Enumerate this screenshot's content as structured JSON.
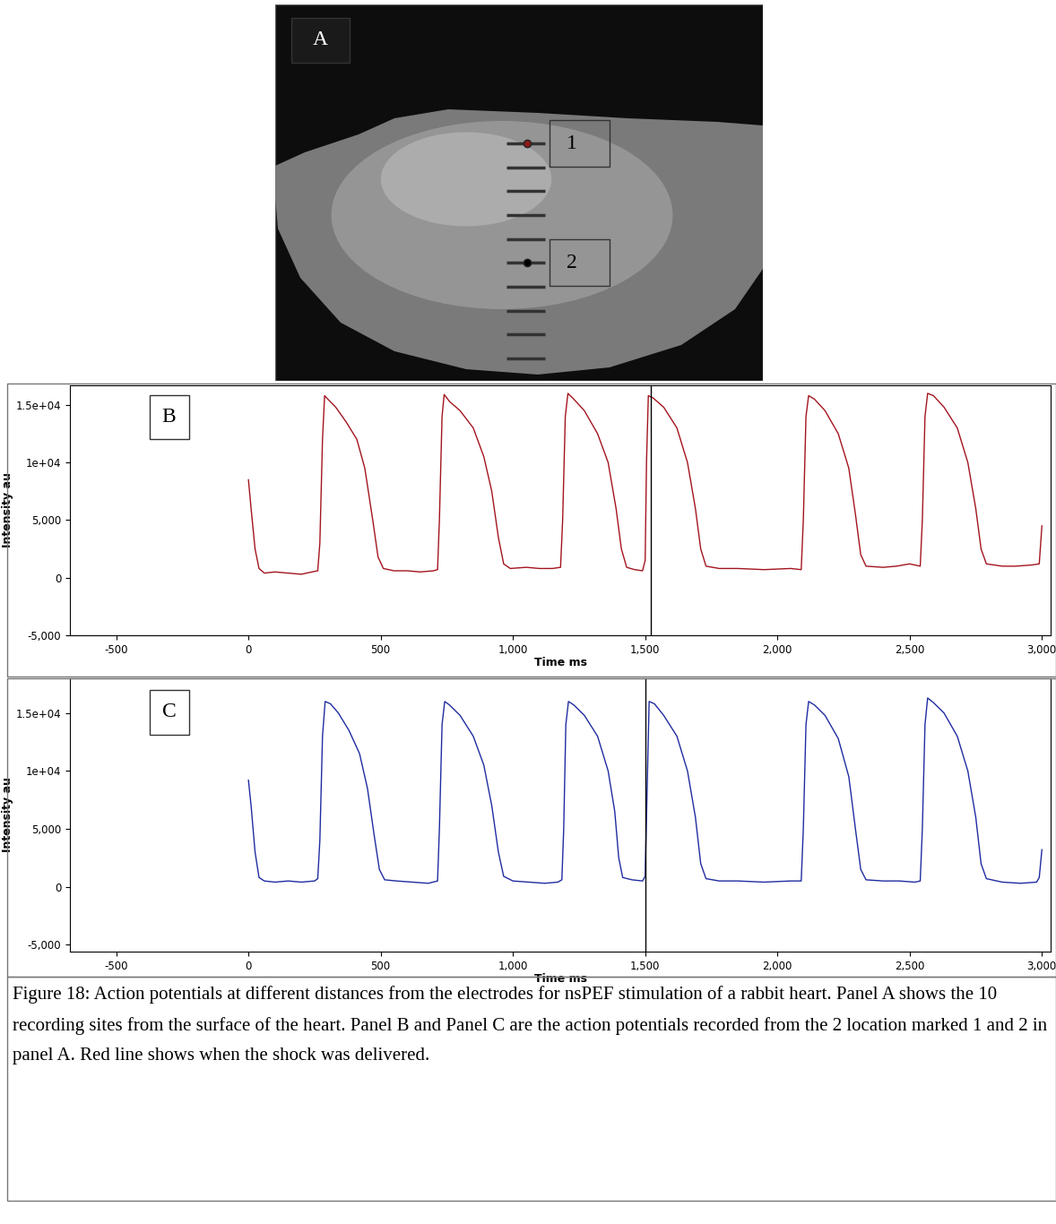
{
  "image_panel": {
    "label": "A",
    "site_count": 10,
    "sites": [
      {
        "label": "1",
        "color": "#8b1a1a",
        "mark": 1
      },
      {
        "label": "2",
        "color": "#000000",
        "mark": 6
      }
    ]
  },
  "caption": "Figure 18: Action potentials at different distances from the electrodes for nsPEF stimulation of a rabbit heart. Panel A shows the 10 recording sites from the surface of the heart. Panel B and Panel C are the action potentials recorded from the 2 location marked 1 and 2 in panel A. Red line shows when the shock was delivered.",
  "chart_data": [
    {
      "type": "line",
      "annotations": [
        "B"
      ],
      "x_label": "Time ms",
      "y_label": "Intensity au",
      "shock_time": 1520,
      "xlim": [
        -675,
        3033
      ],
      "ylim": [
        -5000,
        16700
      ],
      "xticks": [
        -500,
        0,
        500,
        {
          "value": 1000,
          "label": "1,000"
        },
        {
          "value": 1500,
          "label": "1,500"
        },
        {
          "value": 2000,
          "label": "2,000"
        },
        {
          "value": 2500,
          "label": "2,500"
        },
        {
          "value": 3000,
          "label": "3,000"
        }
      ],
      "yticks": [
        {
          "value": -5000,
          "label": "-5,000"
        },
        0,
        {
          "value": 5000,
          "label": "5,000"
        },
        {
          "value": 10000,
          "label": "1e+04"
        },
        {
          "value": 15000,
          "label": "1.5e+04"
        }
      ],
      "grid": false,
      "series": [
        {
          "color": "#a3141e",
          "x": [
            0,
            10,
            25,
            40,
            60,
            100,
            150,
            200,
            240,
            262,
            270,
            280,
            288,
            300,
            330,
            370,
            410,
            440,
            470,
            490,
            510,
            550,
            600,
            650,
            700,
            715,
            722,
            732,
            740,
            760,
            800,
            850,
            890,
            920,
            945,
            965,
            990,
            1050,
            1100,
            1150,
            1180,
            1188,
            1198,
            1208,
            1230,
            1270,
            1320,
            1360,
            1390,
            1410,
            1430,
            1460,
            1490,
            1500,
            1505,
            1512,
            1530,
            1570,
            1620,
            1660,
            1690,
            1710,
            1730,
            1780,
            1850,
            1950,
            2050,
            2090,
            2098,
            2108,
            2118,
            2140,
            2180,
            2230,
            2270,
            2295,
            2315,
            2335,
            2400,
            2450,
            2500,
            2540,
            2548,
            2558,
            2568,
            2590,
            2630,
            2680,
            2720,
            2750,
            2770,
            2790,
            2850,
            2900,
            2960,
            2990,
            3000
          ],
          "values": [
            8500,
            6000,
            2500,
            800,
            400,
            500,
            400,
            300,
            500,
            600,
            3000,
            12000,
            15800,
            15500,
            14800,
            13500,
            12000,
            9500,
            5000,
            1800,
            800,
            600,
            600,
            500,
            600,
            700,
            5000,
            14000,
            15900,
            15300,
            14500,
            13000,
            10500,
            7500,
            3500,
            1200,
            800,
            900,
            800,
            800,
            900,
            5000,
            14000,
            16000,
            15500,
            14500,
            12500,
            10000,
            6000,
            2500,
            900,
            700,
            600,
            1500,
            10000,
            15800,
            15600,
            14800,
            13000,
            10000,
            6000,
            2500,
            1000,
            800,
            800,
            700,
            800,
            700,
            5000,
            14000,
            15800,
            15500,
            14500,
            12500,
            9500,
            5500,
            2000,
            1000,
            900,
            1000,
            1200,
            1000,
            5000,
            14000,
            16000,
            15800,
            14800,
            13000,
            10000,
            6000,
            2500,
            1200,
            1000,
            1000,
            1100,
            1200,
            4500
          ]
        }
      ]
    },
    {
      "type": "line",
      "annotations": [
        "C"
      ],
      "x_label": "Time ms",
      "y_label": "Intensity au",
      "shock_time": 1500,
      "xlim": [
        -675,
        3033
      ],
      "ylim": [
        -5600,
        18000
      ],
      "xticks": [
        -500,
        0,
        500,
        {
          "value": 1000,
          "label": "1,000"
        },
        {
          "value": 1500,
          "label": "1,500"
        },
        {
          "value": 2000,
          "label": "2,000"
        },
        {
          "value": 2500,
          "label": "2,500"
        },
        {
          "value": 3000,
          "label": "3,000"
        }
      ],
      "yticks": [
        {
          "value": -5000,
          "label": "-5,000"
        },
        0,
        {
          "value": 5000,
          "label": "5,000"
        },
        {
          "value": 10000,
          "label": "1e+04"
        },
        {
          "value": 15000,
          "label": "1.5e+04"
        }
      ],
      "grid": false,
      "series": [
        {
          "color": "#1f2ca0",
          "x": [
            0,
            10,
            25,
            40,
            60,
            100,
            150,
            200,
            250,
            262,
            270,
            280,
            290,
            310,
            340,
            380,
            420,
            450,
            475,
            495,
            515,
            560,
            620,
            680,
            715,
            722,
            732,
            742,
            760,
            800,
            850,
            890,
            920,
            945,
            965,
            1000,
            1060,
            1120,
            1170,
            1185,
            1192,
            1200,
            1210,
            1230,
            1270,
            1320,
            1360,
            1385,
            1400,
            1415,
            1450,
            1490,
            1500,
            1508,
            1515,
            1535,
            1570,
            1620,
            1660,
            1690,
            1710,
            1730,
            1780,
            1850,
            1950,
            2050,
            2090,
            2098,
            2108,
            2118,
            2140,
            2180,
            2230,
            2270,
            2295,
            2315,
            2335,
            2400,
            2460,
            2520,
            2540,
            2548,
            2558,
            2568,
            2590,
            2630,
            2680,
            2720,
            2750,
            2770,
            2790,
            2850,
            2920,
            2980,
            2990,
            3000
          ],
          "values": [
            9200,
            7000,
            3000,
            800,
            500,
            400,
            500,
            400,
            500,
            700,
            4000,
            13000,
            16000,
            15800,
            15000,
            13500,
            11500,
            8500,
            4500,
            1500,
            600,
            500,
            400,
            300,
            500,
            5000,
            14000,
            16000,
            15700,
            14800,
            13000,
            10500,
            7000,
            3000,
            900,
            500,
            400,
            300,
            400,
            600,
            5000,
            14000,
            16000,
            15700,
            14800,
            13000,
            10000,
            6500,
            2500,
            800,
            600,
            500,
            900,
            9000,
            16000,
            15800,
            14800,
            13000,
            10000,
            6000,
            2000,
            700,
            500,
            500,
            400,
            500,
            500,
            5000,
            14000,
            16000,
            15700,
            14800,
            12800,
            9500,
            5000,
            1500,
            600,
            500,
            500,
            400,
            500,
            5000,
            14000,
            16300,
            15900,
            15000,
            13000,
            10000,
            6000,
            2000,
            700,
            400,
            300,
            400,
            800,
            3200
          ]
        }
      ]
    }
  ]
}
